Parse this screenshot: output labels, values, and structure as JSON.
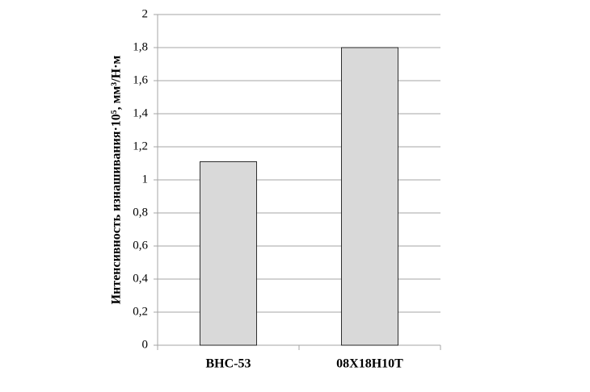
{
  "chart_data": {
    "type": "bar",
    "y_label": "Интенсивность изнашивания·10⁵,  мм³/Н·м",
    "categories": [
      "ВНС-53",
      "08Х18Н10Т"
    ],
    "values": [
      1.11,
      1.8
    ],
    "color": "#d9d9d9",
    "ylim": [
      0,
      2
    ],
    "yticks": [
      0,
      {
        "value": 0.2,
        "label": "0,2"
      },
      {
        "value": 0.4,
        "label": "0,4"
      },
      {
        "value": 0.6,
        "label": "0,6"
      },
      {
        "value": 0.8,
        "label": "0,8"
      },
      1,
      {
        "value": 1.2,
        "label": "1,2"
      },
      {
        "value": 1.4,
        "label": "1,4"
      },
      {
        "value": 1.6,
        "label": "1,6"
      },
      {
        "value": 1.8,
        "label": "1,8"
      },
      2
    ],
    "grid": true
  }
}
